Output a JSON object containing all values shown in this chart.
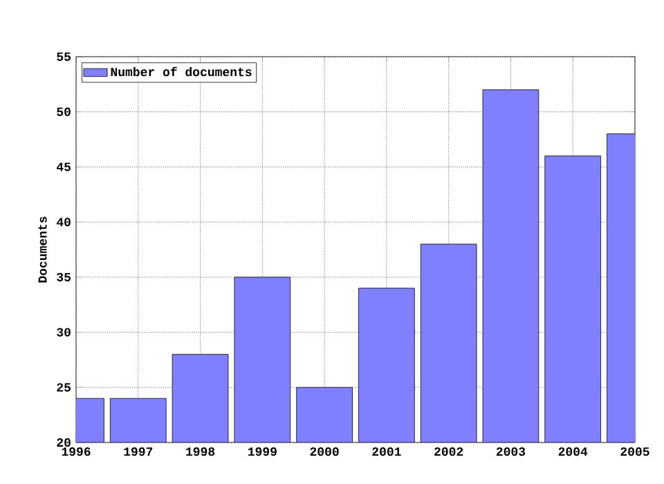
{
  "chart_data": {
    "type": "bar",
    "ylabel": "Documents",
    "x": [
      1996,
      1997,
      1998,
      1999,
      2000,
      2001,
      2002,
      2003,
      2004,
      2005
    ],
    "series": [
      {
        "name": "Number of documents",
        "color": "#8080ff",
        "values": [
          24,
          24,
          28,
          35,
          25,
          34,
          38,
          52,
          46,
          48
        ]
      }
    ],
    "xlim": [
      1996,
      2005
    ],
    "xticks": [
      1996,
      1997,
      1998,
      1999,
      2000,
      2001,
      2002,
      2003,
      2004,
      2005
    ],
    "ylim": [
      20,
      55
    ],
    "yticks": [
      20,
      25,
      30,
      35,
      40,
      45,
      50,
      55
    ],
    "grid": true,
    "legend": "top left"
  }
}
